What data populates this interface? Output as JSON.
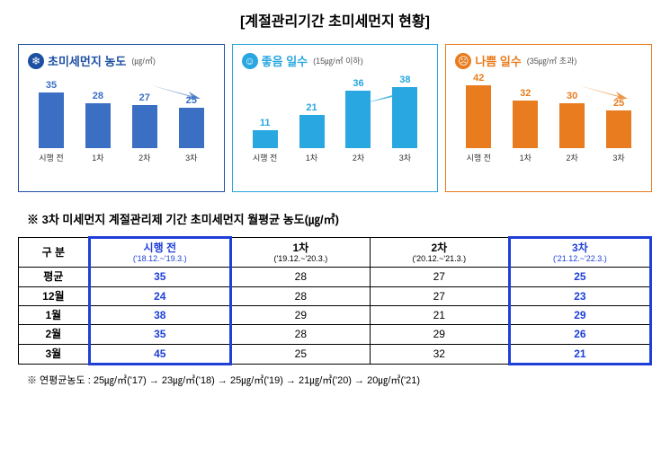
{
  "title": "[계절관리기간 초미세먼지 현황]",
  "charts": [
    {
      "title": "초미세먼지 농도",
      "subtitle": "(㎍/㎥)",
      "border_color": "#1e50a2",
      "title_color": "#1e50a2",
      "icon_bg": "#1e50a2",
      "icon_glyph": "❄",
      "bar_color": "#3b6fc4",
      "max_value": 42,
      "arrow_direction": "down",
      "arrow_color": "#3b6fc4",
      "categories": [
        "시행 전",
        "1차",
        "2차",
        "3차"
      ],
      "values": [
        35,
        28,
        27,
        25
      ]
    },
    {
      "title": "좋음 일수",
      "subtitle": "(15㎍/㎥ 이하)",
      "border_color": "#29a7e0",
      "title_color": "#29a7e0",
      "icon_bg": "#29a7e0",
      "icon_glyph": "☺",
      "bar_color": "#29a7e0",
      "max_value": 42,
      "arrow_direction": "up",
      "arrow_color": "#29a7e0",
      "categories": [
        "시행 전",
        "1차",
        "2차",
        "3차"
      ],
      "values": [
        11,
        21,
        36,
        38
      ]
    },
    {
      "title": "나쁨 일수",
      "subtitle": "(35㎍/㎥ 초과)",
      "border_color": "#e87c1e",
      "title_color": "#e87c1e",
      "icon_bg": "#e87c1e",
      "icon_glyph": "☹",
      "bar_color": "#e87c1e",
      "max_value": 45,
      "arrow_direction": "down",
      "arrow_color": "#e87c1e",
      "categories": [
        "시행 전",
        "1차",
        "2차",
        "3차"
      ],
      "values": [
        42,
        32,
        30,
        25
      ]
    }
  ],
  "table_note": "※ 3차 미세먼지 계절관리제 기간 초미세먼지 월평균 농도(㎍/㎥)",
  "table": {
    "head_label": "구 분",
    "columns": [
      {
        "label": "시행 전",
        "sub": "('18.12.~'19.3.)"
      },
      {
        "label": "1차",
        "sub": "('19.12.~'20.3.)"
      },
      {
        "label": "2차",
        "sub": "('20.12.~'21.3.)"
      },
      {
        "label": "3차",
        "sub": "('21.12.~'22.3.)"
      }
    ],
    "rows": [
      {
        "label": "평균",
        "values": [
          "35",
          "28",
          "27",
          "25"
        ]
      },
      {
        "label": "12월",
        "values": [
          "24",
          "28",
          "27",
          "23"
        ]
      },
      {
        "label": "1월",
        "values": [
          "38",
          "29",
          "21",
          "29"
        ]
      },
      {
        "label": "2월",
        "values": [
          "35",
          "28",
          "29",
          "26"
        ]
      },
      {
        "label": "3월",
        "values": [
          "45",
          "25",
          "32",
          "21"
        ]
      }
    ]
  },
  "footer_note": "※ 연평균농도 : 25㎍/㎥('17) → 23㎍/㎥('18) → 25㎍/㎥('19) → 21㎍/㎥('20) → 20㎍/㎥('21)"
}
